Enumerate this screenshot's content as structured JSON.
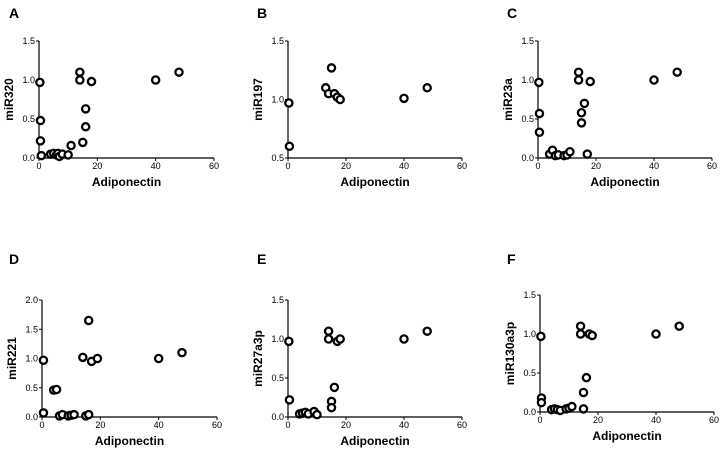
{
  "chart_data": [
    {
      "type": "scatter",
      "panel": "A",
      "xlabel": "Adiponectin",
      "ylabel": "miR320",
      "xlim": [
        0,
        60
      ],
      "ylim": [
        0,
        1.5
      ],
      "xticks": [
        "0",
        "20",
        "40",
        "60"
      ],
      "yticks": [
        "0.0",
        "0.5",
        "1.0",
        "1.5"
      ],
      "x": [
        0.3,
        0.5,
        0.5,
        0.8,
        4,
        5,
        6,
        6.5,
        7,
        8,
        10,
        11,
        14,
        14,
        15,
        16,
        16,
        18,
        40,
        48
      ],
      "y": [
        0.97,
        0.48,
        0.22,
        0.03,
        0.05,
        0.06,
        0.04,
        0.06,
        0.02,
        0.05,
        0.04,
        0.16,
        1.0,
        1.1,
        0.2,
        0.4,
        0.63,
        0.98,
        1.0,
        1.1
      ]
    },
    {
      "type": "scatter",
      "panel": "B",
      "xlabel": "Adiponectin",
      "ylabel": "miR197",
      "xlim": [
        0,
        60
      ],
      "ylim": [
        0.5,
        1.5
      ],
      "xticks": [
        "0",
        "20",
        "40",
        "60"
      ],
      "yticks": [
        "0.5",
        "1.0",
        "1.5"
      ],
      "x": [
        0.3,
        0.5,
        13,
        14,
        15,
        16,
        17,
        18,
        40,
        48
      ],
      "y": [
        0.97,
        0.6,
        1.1,
        1.05,
        1.27,
        1.05,
        1.02,
        1.0,
        1.01,
        1.1
      ]
    },
    {
      "type": "scatter",
      "panel": "C",
      "xlabel": "Adiponectin",
      "ylabel": "miR23a",
      "xlim": [
        0,
        60
      ],
      "ylim": [
        0,
        1.5
      ],
      "xticks": [
        "0",
        "20",
        "40",
        "60"
      ],
      "yticks": [
        "0.0",
        "0.5",
        "1.0",
        "1.5"
      ],
      "x": [
        0.3,
        0.5,
        0.5,
        4,
        5,
        6,
        7,
        9,
        10,
        11,
        14,
        14,
        15,
        15,
        16,
        17,
        18,
        40,
        48
      ],
      "y": [
        0.97,
        0.57,
        0.33,
        0.05,
        0.1,
        0.03,
        0.04,
        0.03,
        0.04,
        0.08,
        1.1,
        1.0,
        0.58,
        0.45,
        0.7,
        0.05,
        0.98,
        1.0,
        1.1
      ]
    },
    {
      "type": "scatter",
      "panel": "D",
      "xlabel": "Adiponectin",
      "ylabel": "miR221",
      "xlim": [
        0,
        60
      ],
      "ylim": [
        0,
        2.0
      ],
      "xticks": [
        "0",
        "20",
        "40",
        "60"
      ],
      "yticks": [
        "0.0",
        "0.5",
        "1.0",
        "1.5",
        "2.0"
      ],
      "x": [
        0.5,
        0.5,
        4,
        5,
        6,
        7,
        9,
        10,
        11,
        14,
        15,
        16,
        16,
        17,
        19,
        40,
        48
      ],
      "y": [
        0.97,
        0.07,
        0.46,
        0.47,
        0.02,
        0.04,
        0.02,
        0.03,
        0.04,
        1.02,
        0.02,
        1.65,
        0.04,
        0.95,
        1.0,
        1.0,
        1.1
      ]
    },
    {
      "type": "scatter",
      "panel": "E",
      "xlabel": "Adiponectin",
      "ylabel": "miR27a3p",
      "xlim": [
        0,
        60
      ],
      "ylim": [
        0,
        1.5
      ],
      "xticks": [
        "0",
        "20",
        "40",
        "60"
      ],
      "yticks": [
        "0.0",
        "0.5",
        "1.0",
        "1.5"
      ],
      "x": [
        0.3,
        0.5,
        4,
        5,
        6,
        7,
        9,
        10,
        14,
        14,
        15,
        15,
        16,
        17,
        18,
        40,
        48
      ],
      "y": [
        0.97,
        0.22,
        0.04,
        0.05,
        0.06,
        0.04,
        0.07,
        0.03,
        1.0,
        1.1,
        0.2,
        0.12,
        0.38,
        0.97,
        1.0,
        1.0,
        1.1
      ]
    },
    {
      "type": "scatter",
      "panel": "F",
      "xlabel": "Adiponectin",
      "ylabel": "miR130a3p",
      "xlim": [
        0,
        60
      ],
      "ylim": [
        0,
        1.5
      ],
      "xticks": [
        "0",
        "20",
        "40",
        "60"
      ],
      "yticks": [
        "0.0",
        "0.5",
        "1.0",
        "1.5"
      ],
      "x": [
        0.3,
        0.5,
        0.5,
        4,
        5,
        6,
        7,
        9,
        10,
        11,
        14,
        14,
        15,
        15,
        16,
        17,
        18,
        40,
        48
      ],
      "y": [
        0.97,
        0.18,
        0.12,
        0.03,
        0.04,
        0.03,
        0.02,
        0.04,
        0.05,
        0.07,
        1.0,
        1.1,
        0.04,
        0.25,
        0.44,
        1.0,
        0.98,
        1.0,
        1.1
      ]
    }
  ]
}
